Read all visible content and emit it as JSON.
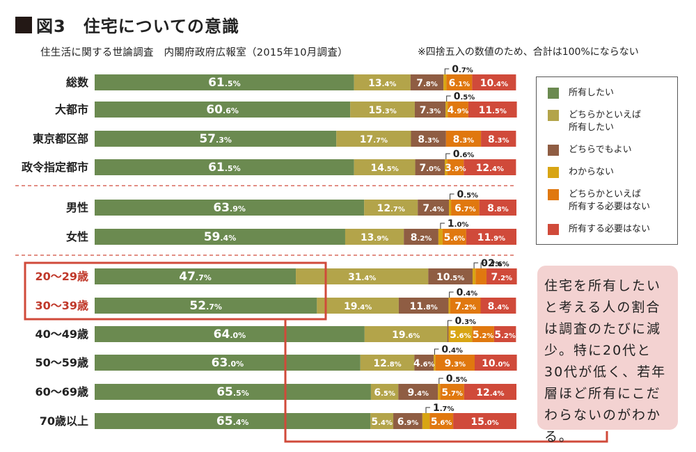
{
  "figure": {
    "title": "図3　住宅についての意識"
  },
  "source": "住生活に関する世論調査　内閣府政府広報室（2015年10月調査）",
  "note": "※四捨五入の数値のため、合計は100%にならない",
  "legend": [
    {
      "label": "所有したい",
      "color": "#6b8a50"
    },
    {
      "label": "どちらかといえば\n所有したい",
      "color": "#b3a44a"
    },
    {
      "label": "どちらでもよい",
      "color": "#8f5d43"
    },
    {
      "label": "わからない",
      "color": "#d8a514"
    },
    {
      "label": "どちらかといえば\n所有する必要はない",
      "color": "#e0780f"
    },
    {
      "label": "所有する必要はない",
      "color": "#d04a3a"
    }
  ],
  "callout": {
    "text": "住宅を所有したいと考える人の割合は調査のたびに減少。特に20代と30代が低く、若年層ほど所有にこだわらないのがわかる。"
  },
  "chart_data": {
    "type": "bar",
    "orientation": "horizontal",
    "stacked": true,
    "unit": "%",
    "categories": [
      "総数",
      "大都市",
      "東京都区部",
      "政令指定都市",
      "男性",
      "女性",
      "20～29歳",
      "30～39歳",
      "40～49歳",
      "50～59歳",
      "60～69歳",
      "70歳以上"
    ],
    "highlight": [
      "20～29歳",
      "30～39歳"
    ],
    "series": [
      {
        "name": "所有したい",
        "values": [
          61.5,
          60.6,
          57.3,
          61.5,
          63.9,
          59.4,
          47.7,
          52.7,
          64.0,
          63.0,
          65.5,
          65.4
        ]
      },
      {
        "name": "どちらかといえば所有したい",
        "values": [
          13.4,
          15.3,
          17.7,
          14.5,
          12.7,
          13.9,
          31.4,
          19.4,
          19.6,
          12.8,
          6.5,
          5.4
        ]
      },
      {
        "name": "どちらでもよい",
        "values": [
          7.8,
          7.3,
          8.3,
          7.0,
          7.4,
          8.2,
          10.5,
          11.8,
          0.3,
          4.6,
          9.4,
          6.9
        ]
      },
      {
        "name": "わからない",
        "values": [
          0.7,
          0.5,
          0,
          0.6,
          0.5,
          1.0,
          0.7,
          0.4,
          5.6,
          0.4,
          0.5,
          1.7
        ]
      },
      {
        "name": "どちらかといえば所有する必要はない",
        "values": [
          6.1,
          4.9,
          8.3,
          3.9,
          6.7,
          5.6,
          2.6,
          7.2,
          5.2,
          9.3,
          5.7,
          5.6
        ]
      },
      {
        "name": "所有する必要はない",
        "values": [
          10.4,
          11.5,
          8.3,
          12.4,
          8.8,
          11.9,
          7.2,
          8.4,
          5.2,
          10.0,
          12.4,
          15.0
        ]
      }
    ]
  }
}
